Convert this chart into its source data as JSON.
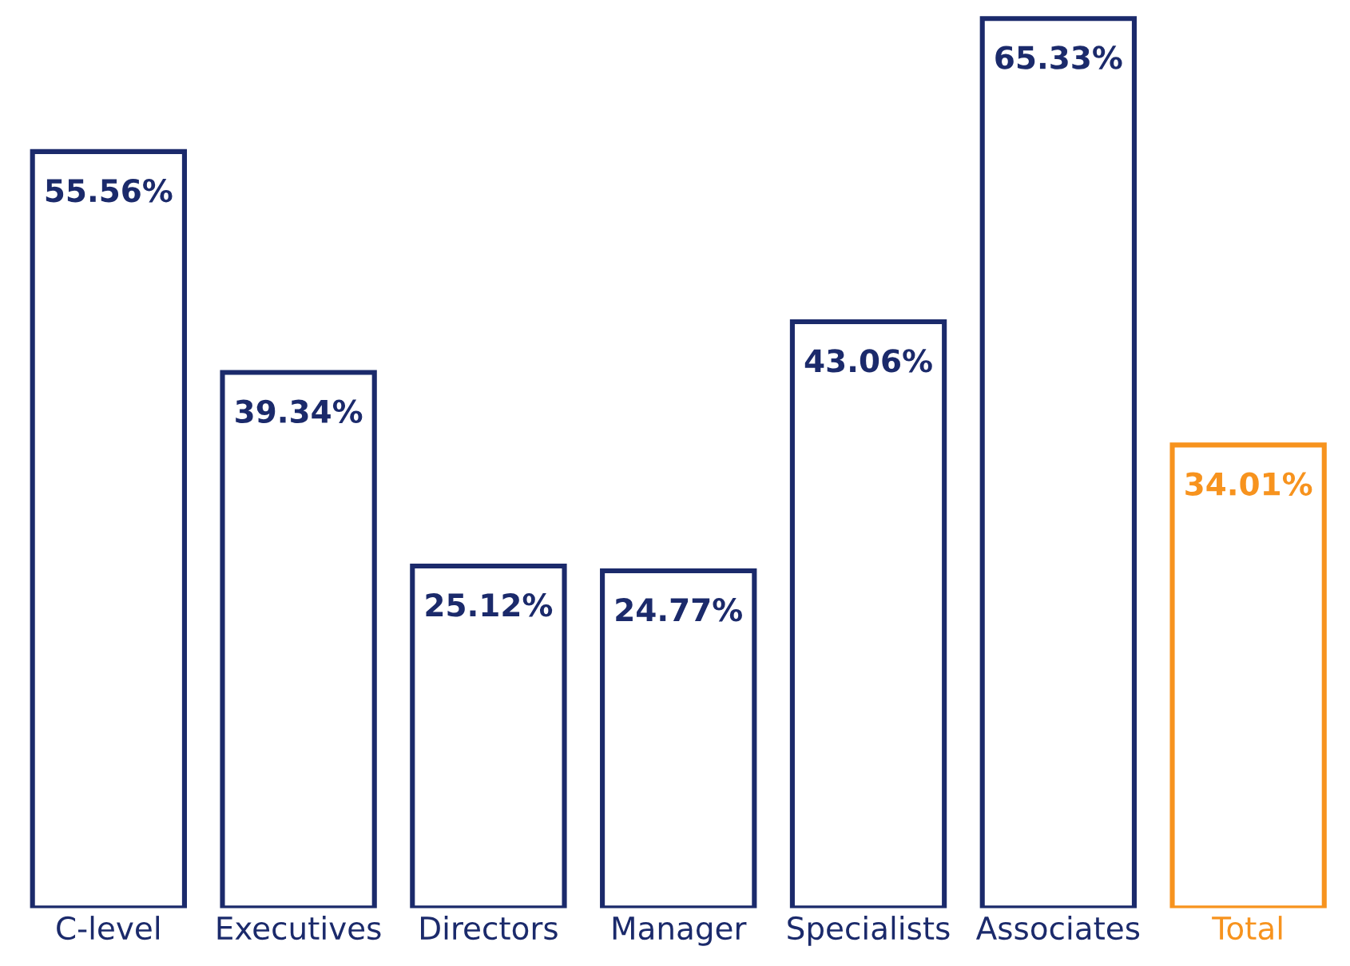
{
  "chart_data": {
    "type": "bar",
    "categories": [
      "C-level",
      "Executives",
      "Directors",
      "Manager",
      "Specialists",
      "Associates",
      "Total"
    ],
    "values": [
      55.56,
      39.34,
      25.12,
      24.77,
      43.06,
      65.33,
      34.01
    ],
    "value_labels": [
      "55.56%",
      "39.34%",
      "25.12%",
      "24.77%",
      "43.06%",
      "65.33%",
      "34.01%"
    ],
    "colors": [
      "#1b2a6b",
      "#1b2a6b",
      "#1b2a6b",
      "#1b2a6b",
      "#1b2a6b",
      "#1b2a6b",
      "#f7931e"
    ],
    "tick_labels": "x",
    "grid": false,
    "legend": false
  }
}
